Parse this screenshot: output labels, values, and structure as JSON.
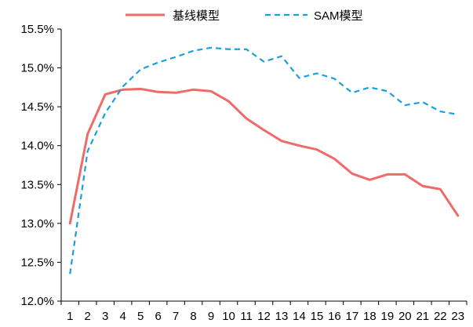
{
  "chart_data": {
    "type": "line",
    "title": "",
    "xlabel": "",
    "ylabel": "",
    "x": [
      1,
      2,
      3,
      4,
      5,
      6,
      7,
      8,
      9,
      10,
      11,
      12,
      13,
      14,
      15,
      16,
      17,
      18,
      19,
      20,
      21,
      22,
      23
    ],
    "x_tick_labels": [
      "1",
      "2",
      "3",
      "4",
      "5",
      "6",
      "7",
      "8",
      "9",
      "10",
      "11",
      "12",
      "13",
      "14",
      "15",
      "16",
      "17",
      "18",
      "19",
      "20",
      "21",
      "22",
      "23"
    ],
    "ylim": [
      12.0,
      15.5
    ],
    "y_ticks": [
      12.0,
      12.5,
      13.0,
      13.5,
      14.0,
      14.5,
      15.0,
      15.5
    ],
    "y_tick_labels": [
      "12.0%",
      "12.5%",
      "13.0%",
      "13.5%",
      "14.0%",
      "14.5%",
      "15.0%",
      "15.5%"
    ],
    "grid": false,
    "legend_position": "top-center",
    "series": [
      {
        "name": "基线模型",
        "color": "#f06a6a",
        "line_style": "solid",
        "values": [
          13.0,
          14.15,
          14.66,
          14.72,
          14.73,
          14.69,
          14.68,
          14.72,
          14.7,
          14.57,
          14.35,
          14.2,
          14.06,
          14.0,
          13.95,
          13.83,
          13.64,
          13.56,
          13.63,
          13.63,
          13.48,
          13.44,
          13.1
        ]
      },
      {
        "name": "SAM模型",
        "color": "#1a9fe0",
        "line_style": "dashed",
        "values": [
          12.35,
          13.93,
          14.42,
          14.76,
          14.98,
          15.07,
          15.14,
          15.22,
          15.26,
          15.24,
          15.24,
          15.08,
          15.15,
          14.87,
          14.93,
          14.86,
          14.68,
          14.75,
          14.7,
          14.52,
          14.56,
          14.44,
          14.4
        ]
      }
    ]
  }
}
